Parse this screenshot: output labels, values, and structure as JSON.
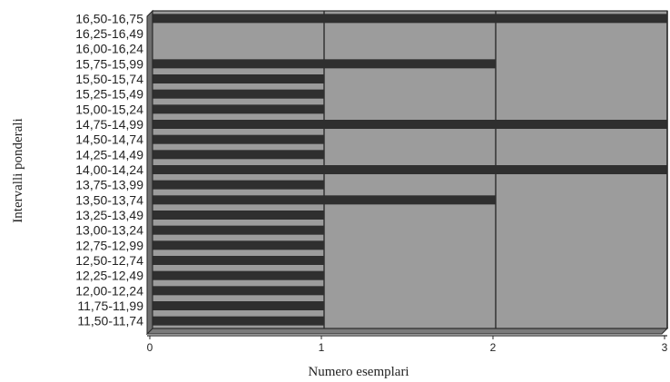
{
  "chart_data": {
    "type": "bar",
    "orientation": "horizontal",
    "categories": [
      "16,50-16,75",
      "16,25-16,49",
      "16,00-16,24",
      "15,75-15,99",
      "15,50-15,74",
      "15,25-15,49",
      "15,00-15,24",
      "14,75-14,99",
      "14,50-14,74",
      "14,25-14,49",
      "14,00-14,24",
      "13,75-13,99",
      "13,50-13,74",
      "13,25-13,49",
      "13,00-13,24",
      "12,75-12,99",
      "12,50-12,74",
      "12,25-12,49",
      "12,00-12,24",
      "11,75-11,99",
      "11,50-11,74"
    ],
    "values": [
      3,
      0,
      0,
      2,
      1,
      1,
      1,
      3,
      1,
      1,
      3,
      1,
      2,
      1,
      1,
      1,
      1,
      1,
      1,
      1,
      1
    ],
    "xlabel": "Numero esemplari",
    "ylabel": "Intervalli ponderali",
    "xlim": [
      0,
      3
    ],
    "xticks": [
      "0",
      "1",
      "2",
      "3"
    ],
    "grid": "vertical",
    "colors": {
      "plot_background": "#9c9c9c",
      "bar": "#2f2f2f",
      "gridline": "#3a3a3a",
      "frame": "#2a2a2a"
    }
  }
}
